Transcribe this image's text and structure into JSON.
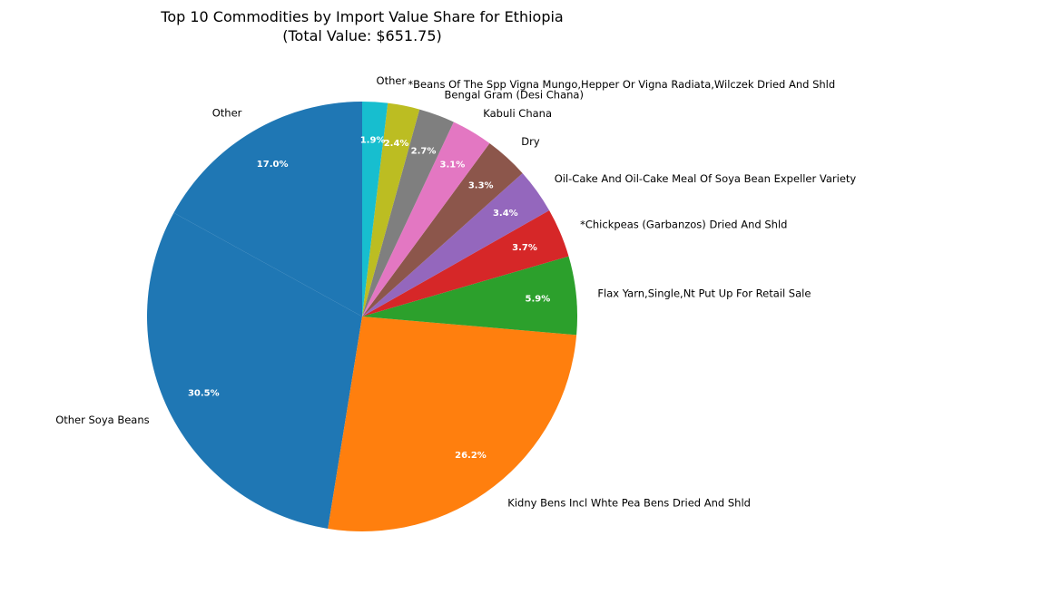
{
  "chart_data": {
    "type": "pie",
    "title": "Top 10 Commodities by Import Value Share for Ethiopia",
    "subtitle": "(Total Value: $651.75)",
    "start_angle_deg": 90,
    "direction": "counterclockwise",
    "slices": [
      {
        "label": "Other",
        "percent": 17.0,
        "pct_label": "17.0%",
        "color": "#1f77b4"
      },
      {
        "label": "Other Soya Beans",
        "percent": 30.5,
        "pct_label": "30.5%",
        "color": "#1f77b4"
      },
      {
        "label": "Kidny Bens Incl Whte Pea Bens Dried And Shld",
        "percent": 26.2,
        "pct_label": "26.2%",
        "color": "#ff7f0e"
      },
      {
        "label": "Flax Yarn,Single,Nt Put Up For Retail Sale",
        "percent": 5.9,
        "pct_label": "5.9%",
        "color": "#2ca02c"
      },
      {
        "label": "*Chickpeas (Garbanzos) Dried And Shld",
        "percent": 3.7,
        "pct_label": "3.7%",
        "color": "#d62728"
      },
      {
        "label": "Oil-Cake And Oil-Cake Meal Of Soya Bean Expeller Variety",
        "percent": 3.4,
        "pct_label": "3.4%",
        "color": "#9467bd"
      },
      {
        "label": "Dry",
        "percent": 3.3,
        "pct_label": "3.3%",
        "color": "#8c564b"
      },
      {
        "label": "Kabuli Chana",
        "percent": 3.1,
        "pct_label": "3.1%",
        "color": "#e377c2"
      },
      {
        "label": "Bengal Gram (Desi Chana)",
        "percent": 2.7,
        "pct_label": "2.7%",
        "color": "#7f7f7f"
      },
      {
        "label": "*Beans Of The Spp Vigna Mungo,Hepper Or Vigna Radiata,Wilczek Dried And Shld",
        "percent": 2.4,
        "pct_label": "2.4%",
        "color": "#bcbd22"
      },
      {
        "label": "Other",
        "percent": 1.9,
        "pct_label": "1.9%",
        "color": "#17becf"
      }
    ]
  }
}
